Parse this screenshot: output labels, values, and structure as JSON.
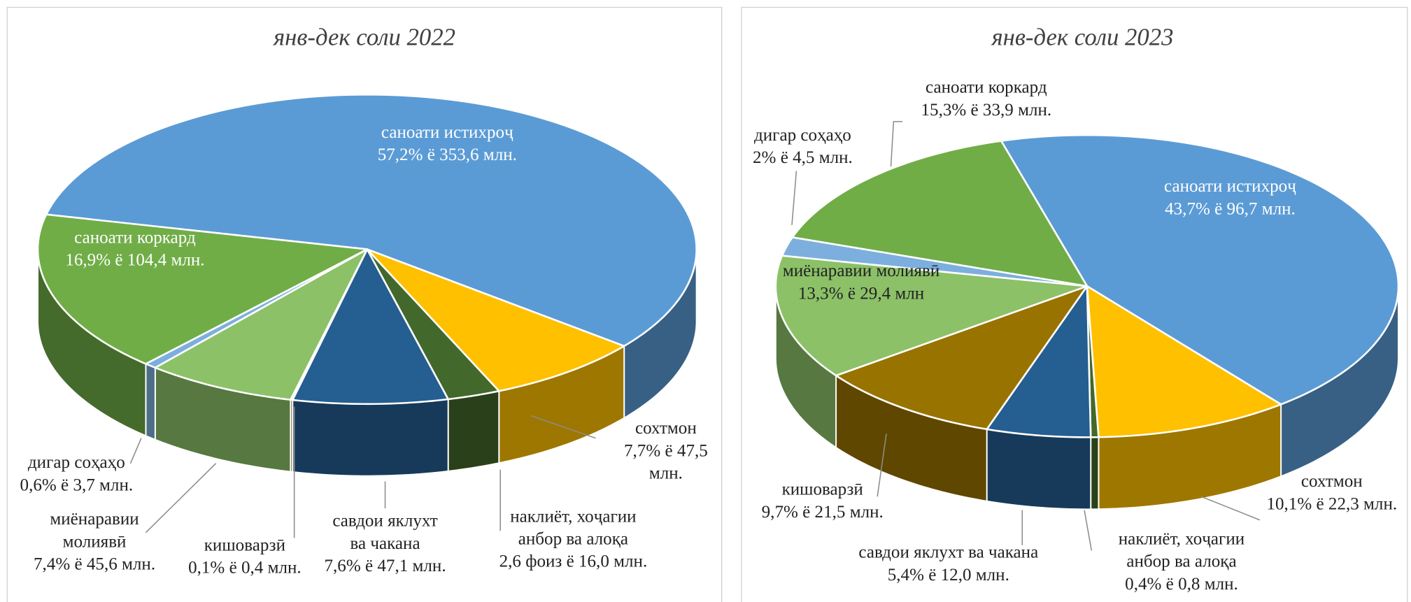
{
  "chart_data": [
    {
      "type": "pie",
      "title": "янв-дек соли 2022",
      "categories": [
        "саноати истихроҷ",
        "сохтмон",
        "наклиёт, хоҷагии анбор ва алоқа",
        "савдои яклухт ва чакана",
        "кишоварзӣ",
        "миёнаравии молиявӣ",
        "дигар соҳаҳо",
        "саноати коркард"
      ],
      "values": [
        57.2,
        7.7,
        2.6,
        7.6,
        0.1,
        7.4,
        0.6,
        16.9
      ],
      "value_labels": [
        "57,2% ё 353,6 млн.",
        "7,7% ё 47,5 млн.",
        "2,6 фоиз ё 16,0 млн.",
        "7,6% ё 47,1 млн.",
        "0,1% ё 0,4 млн.",
        "7,4% ё 45,6 млн.",
        "0,6% ё 3,7 млн.",
        "16,9% ё 104,4 млн."
      ],
      "colors": [
        "#5b9bd5",
        "#ffc000",
        "#43682b",
        "#255e91",
        "#997300",
        "#8cc168",
        "#7cafdd",
        "#70ad47"
      ]
    },
    {
      "type": "pie",
      "title": "янв-дек соли 2023",
      "categories": [
        "саноати истихроҷ",
        "сохтмон",
        "наклиёт, хоҷагии анбор ва алоқа",
        "савдои яклухт ва чакана",
        "кишоварзӣ",
        "миёнаравии молиявӣ",
        "дигар соҳаҳо",
        "саноати коркард"
      ],
      "values": [
        43.7,
        10.1,
        0.4,
        5.4,
        9.7,
        13.3,
        2,
        15.3
      ],
      "value_labels": [
        "43,7% ё 96,7 млн.",
        "10,1% ё 22,3 млн.",
        "0,4% ё 0,8 млн.",
        "5,4% ё 12,0 млн.",
        "9,7% ё 21,5 млн.",
        "13,3% ё 29,4 млн",
        "2% ё 4,5 млн.",
        "15,3% ё 33,9 млн."
      ],
      "colors": [
        "#5b9bd5",
        "#ffc000",
        "#43682b",
        "#255e91",
        "#997300",
        "#8cc168",
        "#7cafdd",
        "#70ad47"
      ]
    }
  ]
}
